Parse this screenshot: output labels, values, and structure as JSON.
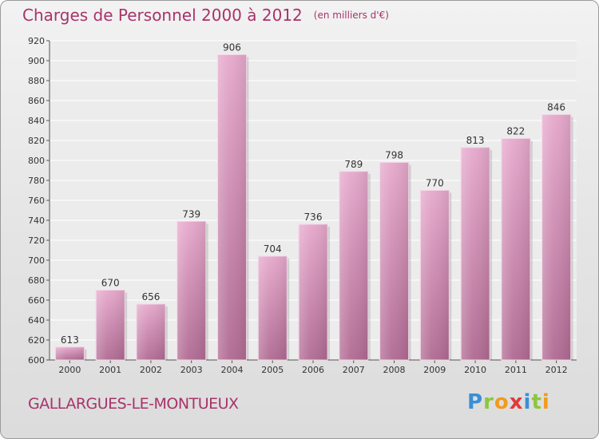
{
  "header": {
    "title": "Charges de Personnel 2000 à 2012",
    "subtitle": "(en milliers d'€)"
  },
  "footer": {
    "commune": "GALLARGUES-LE-MONTUEUX",
    "logo_letters": [
      "P",
      "r",
      "o",
      "x",
      "i",
      "t",
      "i"
    ]
  },
  "colors": {
    "title": "#a8336a",
    "bar_top": "#e6a8cc",
    "bar_bottom": "#b06a92"
  },
  "chart_data": {
    "type": "bar",
    "title": "Charges de Personnel 2000 à 2012",
    "subtitle": "(en milliers d'€)",
    "categories": [
      "2000",
      "2001",
      "2002",
      "2003",
      "2004",
      "2005",
      "2006",
      "2007",
      "2008",
      "2009",
      "2010",
      "2011",
      "2012"
    ],
    "values": [
      613,
      670,
      656,
      739,
      906,
      704,
      736,
      789,
      798,
      770,
      813,
      822,
      846
    ],
    "ylim": [
      600,
      920
    ],
    "yticks": [
      600,
      620,
      640,
      660,
      680,
      700,
      720,
      740,
      760,
      780,
      800,
      820,
      840,
      860,
      880,
      900,
      920
    ],
    "grid": true
  }
}
